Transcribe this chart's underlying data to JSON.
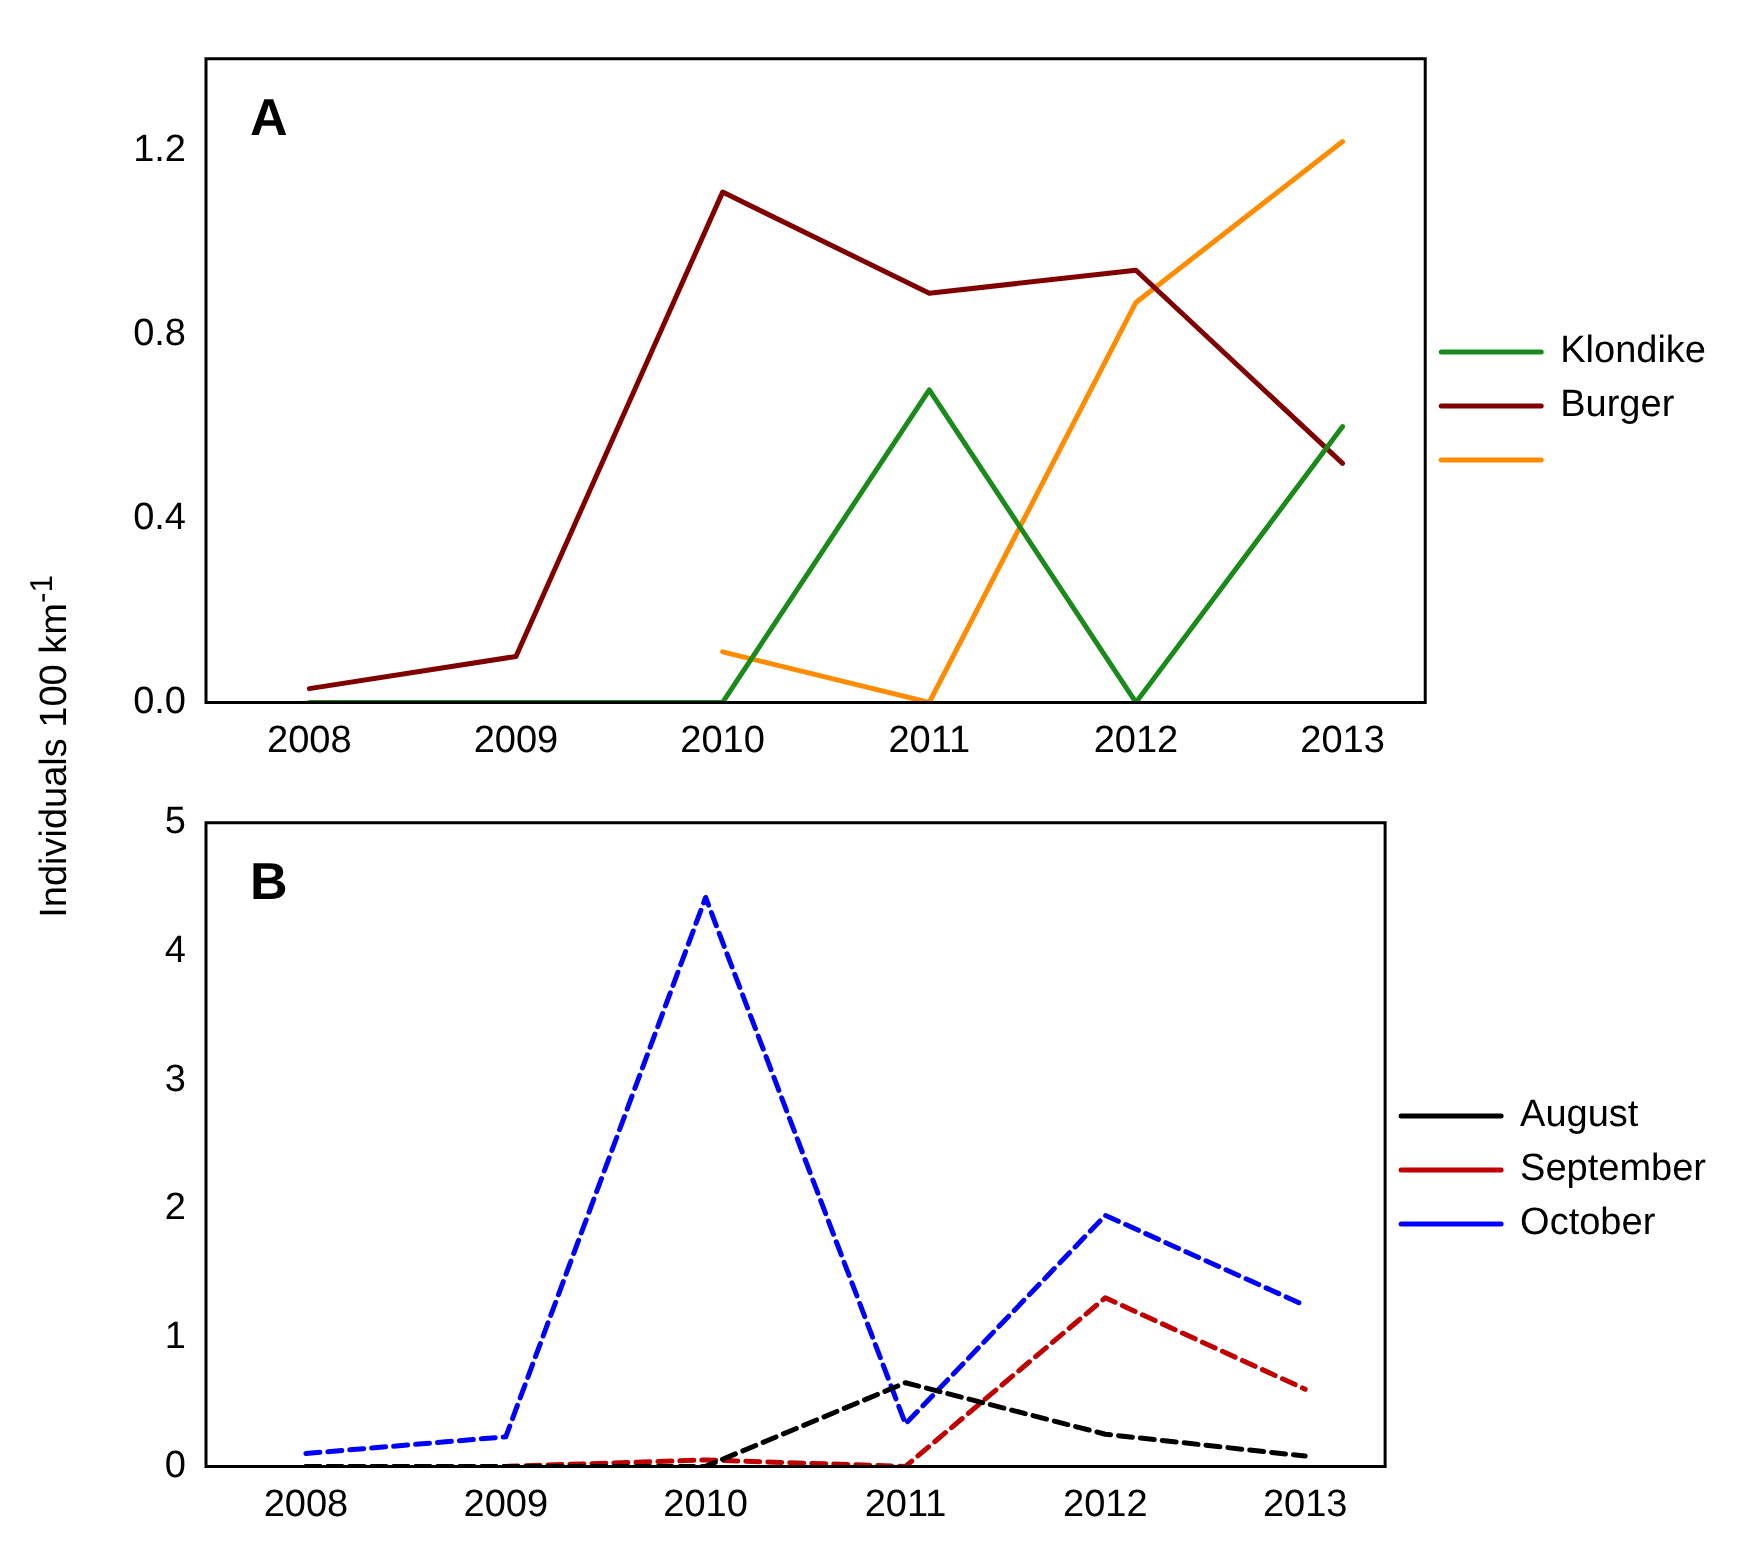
{
  "chart_data": [
    {
      "type": "line",
      "ylabel": "Individuals 100 km$^{-1}$",
      "annotations": [
        "A"
      ],
      "x": [
        2008,
        2009,
        2010,
        2011,
        2012,
        2013
      ],
      "xlim": [
        2007.5,
        2013.4
      ],
      "xticks": [
        2008,
        2009,
        2010,
        2011,
        2012,
        2013
      ],
      "ylim": [
        0,
        1.4
      ],
      "yticks": [
        {
          "value": 0,
          "label": "0.0"
        },
        0.4,
        0.8,
        1.2
      ],
      "grid": false,
      "legend": "right",
      "line_style": "solid",
      "marker": "none",
      "series": [
        {
          "name": "Klondike",
          "color": "#1a8a1a",
          "values": [
            0,
            0,
            0,
            0.68,
            0,
            0.6
          ]
        },
        {
          "name": "Burger",
          "color": "#800000",
          "values": [
            0.03,
            0.1,
            1.11,
            0.89,
            0.94,
            0.52
          ]
        },
        {
          "color": "#ff8c00",
          "values": [
            null,
            null,
            0.11,
            0,
            0.87,
            1.22
          ]
        }
      ]
    },
    {
      "type": "line",
      "annotations": [
        "B"
      ],
      "x": [
        2008,
        2009,
        2010,
        2011,
        2012,
        2013
      ],
      "xlim": [
        2007.5,
        2013.4
      ],
      "xticks": [
        2008,
        2009,
        2010,
        2011,
        2012,
        2013
      ],
      "ylim": [
        0,
        5
      ],
      "yticks": [
        0,
        1,
        2,
        3,
        4,
        5
      ],
      "grid": false,
      "legend": "right",
      "line_style": "dashed",
      "marker": "none",
      "series": [
        {
          "name": "August",
          "color": "#000000",
          "values": [
            0,
            0,
            0,
            0.65,
            0.25,
            0.08
          ]
        },
        {
          "name": "September",
          "color": "#c00000",
          "values": [
            0,
            0,
            0.05,
            0,
            1.31,
            0.6
          ]
        },
        {
          "name": "October",
          "color": "#0000ff",
          "values": [
            0.1,
            0.23,
            4.42,
            0.33,
            1.95,
            1.25
          ]
        }
      ]
    }
  ]
}
